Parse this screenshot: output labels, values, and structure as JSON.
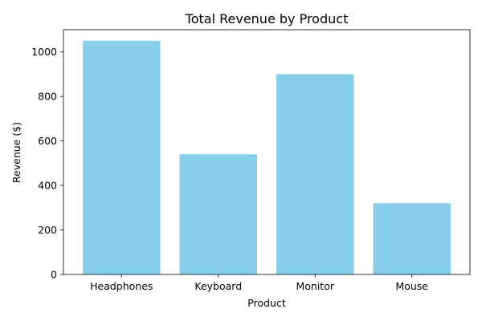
{
  "chart_data": {
    "type": "bar",
    "title": "Total Revenue by Product",
    "xlabel": "Product",
    "ylabel": "Revenue ($)",
    "categories": [
      "Headphones",
      "Keyboard",
      "Monitor",
      "Mouse"
    ],
    "values": [
      1050,
      540,
      900,
      320
    ],
    "ylim": [
      0,
      1100
    ],
    "yticks": [
      0,
      200,
      400,
      600,
      800,
      1000
    ],
    "bar_color": "#87ceeb",
    "grid": false,
    "legend": "none"
  }
}
